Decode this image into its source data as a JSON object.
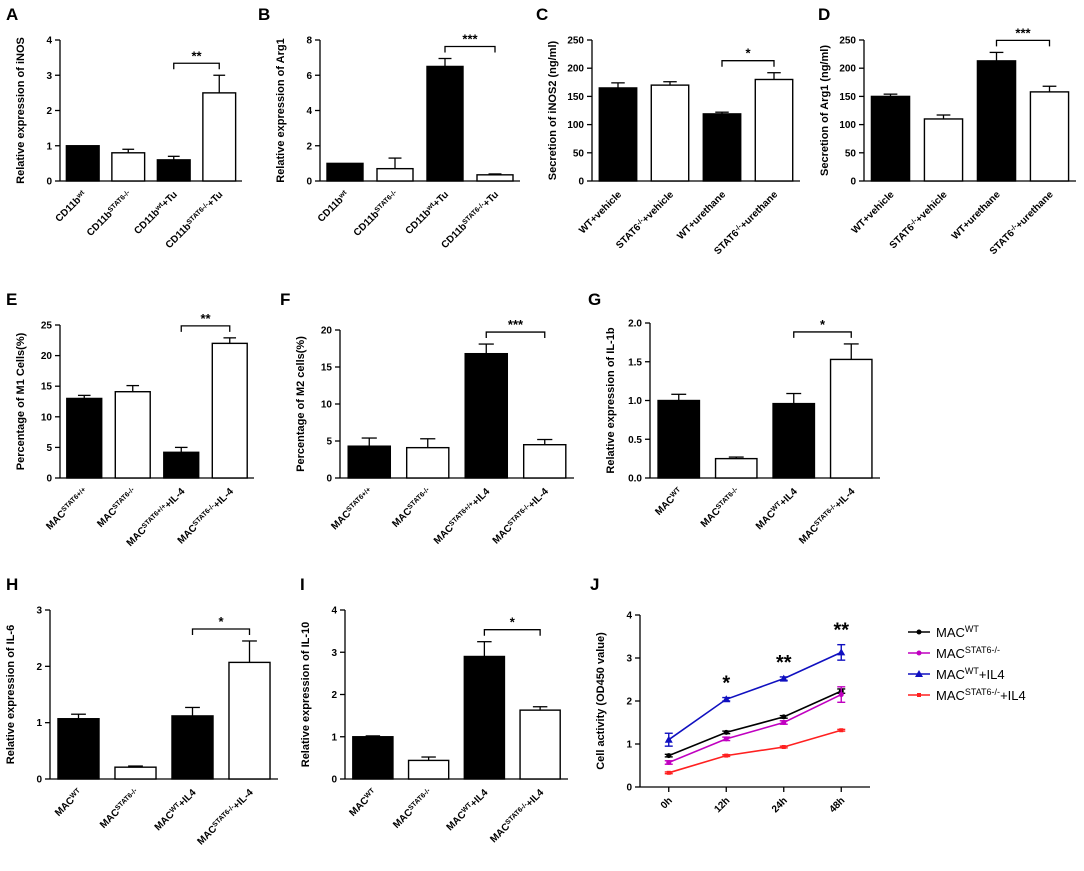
{
  "figure": {
    "colors": {
      "filled": "#000000",
      "open": "#ffffff",
      "stroke": "#000000"
    }
  },
  "chart_data": [
    {
      "id": "A",
      "panel_label": "A",
      "type": "bar",
      "ylabel": "Relative expression of iNOS",
      "ylim": [
        0,
        4
      ],
      "yticks": [
        "0",
        "1",
        "2",
        "3",
        "4"
      ],
      "categories": [
        {
          "base": "CD11b",
          "sup": "wt",
          "suffix": ""
        },
        {
          "base": "CD11b",
          "sup": "STAT6-/-",
          "suffix": ""
        },
        {
          "base": "CD11b",
          "sup": "wt",
          "suffix": "+Tu"
        },
        {
          "base": "CD11b",
          "sup": "STAT6-/-",
          "suffix": "+Tu"
        }
      ],
      "values": [
        1.0,
        0.8,
        0.6,
        2.5
      ],
      "errors": [
        0,
        0.1,
        0.1,
        0.5
      ],
      "fills": [
        "filled",
        "open",
        "filled",
        "open"
      ],
      "significance": {
        "from": 2,
        "to": 3,
        "label": "**"
      }
    },
    {
      "id": "B",
      "panel_label": "B",
      "type": "bar",
      "ylabel": "Relative expression of Arg1",
      "ylim": [
        0,
        8
      ],
      "yticks": [
        "0",
        "2",
        "4",
        "6",
        "8"
      ],
      "categories": [
        {
          "base": "CD11b",
          "sup": "wt",
          "suffix": ""
        },
        {
          "base": "CD11b",
          "sup": "STAT6-/-",
          "suffix": ""
        },
        {
          "base": "CD11b",
          "sup": "wt",
          "suffix": "+Tu"
        },
        {
          "base": "CD11b",
          "sup": "STAT6-/-",
          "suffix": "+Tu"
        }
      ],
      "values": [
        1.0,
        0.7,
        6.5,
        0.35
      ],
      "errors": [
        0,
        0.6,
        0.45,
        0.05
      ],
      "fills": [
        "filled",
        "open",
        "filled",
        "open"
      ],
      "significance": {
        "from": 2,
        "to": 3,
        "label": "***"
      }
    },
    {
      "id": "C",
      "panel_label": "C",
      "type": "bar",
      "ylabel": "Secretion of iNOS2 (ng/ml)",
      "ylim": [
        0,
        250
      ],
      "yticks": [
        "0",
        "50",
        "100",
        "150",
        "200",
        "250"
      ],
      "categories": [
        {
          "base": "WT+vehicle",
          "sup": "",
          "suffix": ""
        },
        {
          "base": "STAT6",
          "sup": "-/-",
          "suffix": "+vehicle"
        },
        {
          "base": "WT+urethane",
          "sup": "",
          "suffix": ""
        },
        {
          "base": "STAT6",
          "sup": "-/-",
          "suffix": "+urethane"
        }
      ],
      "values": [
        165,
        170,
        119,
        180
      ],
      "errors": [
        9,
        6,
        3,
        12
      ],
      "fills": [
        "filled",
        "open",
        "filled",
        "open"
      ],
      "significance": {
        "from": 2,
        "to": 3,
        "label": "*"
      }
    },
    {
      "id": "D",
      "panel_label": "D",
      "type": "bar",
      "ylabel": "Secretion of Arg1 (ng/ml)",
      "ylim": [
        0,
        250
      ],
      "yticks": [
        "0",
        "50",
        "100",
        "150",
        "200",
        "250"
      ],
      "categories": [
        {
          "base": "WT+vehicle",
          "sup": "",
          "suffix": ""
        },
        {
          "base": "STAT6",
          "sup": "-/-",
          "suffix": "+vehicle"
        },
        {
          "base": "WT+urethane",
          "sup": "",
          "suffix": ""
        },
        {
          "base": "STAT6",
          "sup": "-/-",
          "suffix": "+urethane"
        }
      ],
      "values": [
        150,
        110,
        213,
        158
      ],
      "errors": [
        4,
        7,
        15,
        10
      ],
      "fills": [
        "filled",
        "open",
        "filled",
        "open"
      ],
      "significance": {
        "from": 2,
        "to": 3,
        "label": "***"
      }
    },
    {
      "id": "E",
      "panel_label": "E",
      "type": "bar",
      "ylabel": "Percentage of M1 Cells(%)",
      "ylim": [
        0,
        25
      ],
      "yticks": [
        "0",
        "5",
        "10",
        "15",
        "20",
        "25"
      ],
      "categories": [
        {
          "base": "MAC",
          "sup": "STAT6+/+",
          "suffix": ""
        },
        {
          "base": "MAC",
          "sup": "STAT6-/-",
          "suffix": ""
        },
        {
          "base": "MAC",
          "sup": "STAT6+/+",
          "suffix": "+IL-4"
        },
        {
          "base": "MAC",
          "sup": "STAT6-/-",
          "suffix": "+IL-4"
        }
      ],
      "values": [
        13,
        14.1,
        4.2,
        22
      ],
      "errors": [
        0.5,
        1,
        0.8,
        0.9
      ],
      "fills": [
        "filled",
        "open",
        "filled",
        "open"
      ],
      "significance": {
        "from": 2,
        "to": 3,
        "label": "**"
      }
    },
    {
      "id": "F",
      "panel_label": "F",
      "type": "bar",
      "ylabel": "Percentage of M2 cells(%)",
      "ylim": [
        0,
        20
      ],
      "yticks": [
        "0",
        "5",
        "10",
        "15",
        "20"
      ],
      "categories": [
        {
          "base": "MAC",
          "sup": "STAT6+/+",
          "suffix": ""
        },
        {
          "base": "MAC",
          "sup": "STAT6-/-",
          "suffix": ""
        },
        {
          "base": "MAC",
          "sup": "STAT6+/+",
          "suffix": "+IL4"
        },
        {
          "base": "MAC",
          "sup": "STAT6-/-",
          "suffix": "+IL-4"
        }
      ],
      "values": [
        4.3,
        4.1,
        16.8,
        4.5
      ],
      "errors": [
        1.1,
        1.2,
        1.3,
        0.7
      ],
      "fills": [
        "filled",
        "open",
        "filled",
        "open"
      ],
      "significance": {
        "from": 2,
        "to": 3,
        "label": "***"
      }
    },
    {
      "id": "G",
      "panel_label": "G",
      "type": "bar",
      "ylabel": "Relative expression of IL-1b",
      "ylim": [
        0,
        2.0
      ],
      "yticks": [
        "0.0",
        "0.5",
        "1.0",
        "1.5",
        "2.0"
      ],
      "categories": [
        {
          "base": "MAC",
          "sup": "WT",
          "suffix": ""
        },
        {
          "base": "MAC",
          "sup": "STAT6-/-",
          "suffix": ""
        },
        {
          "base": "MAC",
          "sup": "WT",
          "suffix": "+IL4"
        },
        {
          "base": "MAC",
          "sup": "STAT6-/-",
          "suffix": "+IL-4"
        }
      ],
      "values": [
        1.0,
        0.25,
        0.96,
        1.53
      ],
      "errors": [
        0.08,
        0.02,
        0.13,
        0.2
      ],
      "fills": [
        "filled",
        "open",
        "filled",
        "open"
      ],
      "significance": {
        "from": 2,
        "to": 3,
        "label": "*"
      }
    },
    {
      "id": "H",
      "panel_label": "H",
      "type": "bar",
      "ylabel": "Relative expression of IL-6",
      "ylim": [
        0,
        3
      ],
      "yticks": [
        "0",
        "1",
        "2",
        "3"
      ],
      "categories": [
        {
          "base": "MAC",
          "sup": "WT",
          "suffix": ""
        },
        {
          "base": "MAC",
          "sup": "STAT6-/-",
          "suffix": ""
        },
        {
          "base": "MAC",
          "sup": "WT",
          "suffix": "+IL4"
        },
        {
          "base": "MAC",
          "sup": "STAT6-/-",
          "suffix": "+IL-4"
        }
      ],
      "values": [
        1.07,
        0.21,
        1.12,
        2.07
      ],
      "errors": [
        0.08,
        0.02,
        0.15,
        0.38
      ],
      "fills": [
        "filled",
        "open",
        "filled",
        "open"
      ],
      "significance": {
        "from": 2,
        "to": 3,
        "label": "*"
      }
    },
    {
      "id": "I",
      "panel_label": "I",
      "type": "bar",
      "ylabel": "Relative expression of IL-10",
      "ylim": [
        0,
        4
      ],
      "yticks": [
        "0",
        "1",
        "2",
        "3",
        "4"
      ],
      "categories": [
        {
          "base": "MAC",
          "sup": "WT",
          "suffix": ""
        },
        {
          "base": "MAC",
          "sup": "STAT6-/-",
          "suffix": ""
        },
        {
          "base": "MAC",
          "sup": "WT",
          "suffix": "+IL4"
        },
        {
          "base": "MAC",
          "sup": "STAT6-/-",
          "suffix": "+IL4"
        }
      ],
      "values": [
        1.0,
        0.44,
        2.9,
        1.63
      ],
      "errors": [
        0.02,
        0.08,
        0.35,
        0.08
      ],
      "fills": [
        "filled",
        "open",
        "filled",
        "open"
      ],
      "significance": {
        "from": 2,
        "to": 3,
        "label": "*"
      }
    },
    {
      "id": "J",
      "panel_label": "J",
      "type": "line",
      "ylabel": "Cell activity (OD450 value)",
      "ylim": [
        0,
        4
      ],
      "yticks": [
        "0",
        "1",
        "2",
        "3",
        "4"
      ],
      "x": [
        "0h",
        "12h",
        "24h",
        "48h"
      ],
      "series": [
        {
          "name": "MAC",
          "sup": "WT",
          "suffix": "",
          "color": "#000000",
          "marker": "circle",
          "values": [
            0.73,
            1.27,
            1.63,
            2.23
          ],
          "errors": [
            0.03,
            0.03,
            0.03,
            0.05
          ]
        },
        {
          "name": "MAC",
          "sup": "STAT6-/-",
          "suffix": "",
          "color": "#c000c0",
          "marker": "circle",
          "values": [
            0.57,
            1.12,
            1.5,
            2.15
          ],
          "errors": [
            0.04,
            0.04,
            0.04,
            0.18
          ]
        },
        {
          "name": "MAC",
          "sup": "WT",
          "suffix": "+IL4",
          "color": "#1010c0",
          "marker": "triangle",
          "values": [
            1.1,
            2.04,
            2.52,
            3.13
          ],
          "errors": [
            0.15,
            0.04,
            0.04,
            0.18
          ]
        },
        {
          "name": "MAC",
          "sup": "STAT6-/-",
          "suffix": "+IL4",
          "color": "#ff2020",
          "marker": "square",
          "values": [
            0.33,
            0.73,
            0.93,
            1.32
          ],
          "errors": [
            0.02,
            0.02,
            0.02,
            0.02
          ]
        }
      ],
      "annotations": [
        {
          "x_index": 1,
          "label": "*"
        },
        {
          "x_index": 2,
          "label": "**"
        },
        {
          "x_index": 3,
          "label": "**"
        }
      ]
    }
  ]
}
